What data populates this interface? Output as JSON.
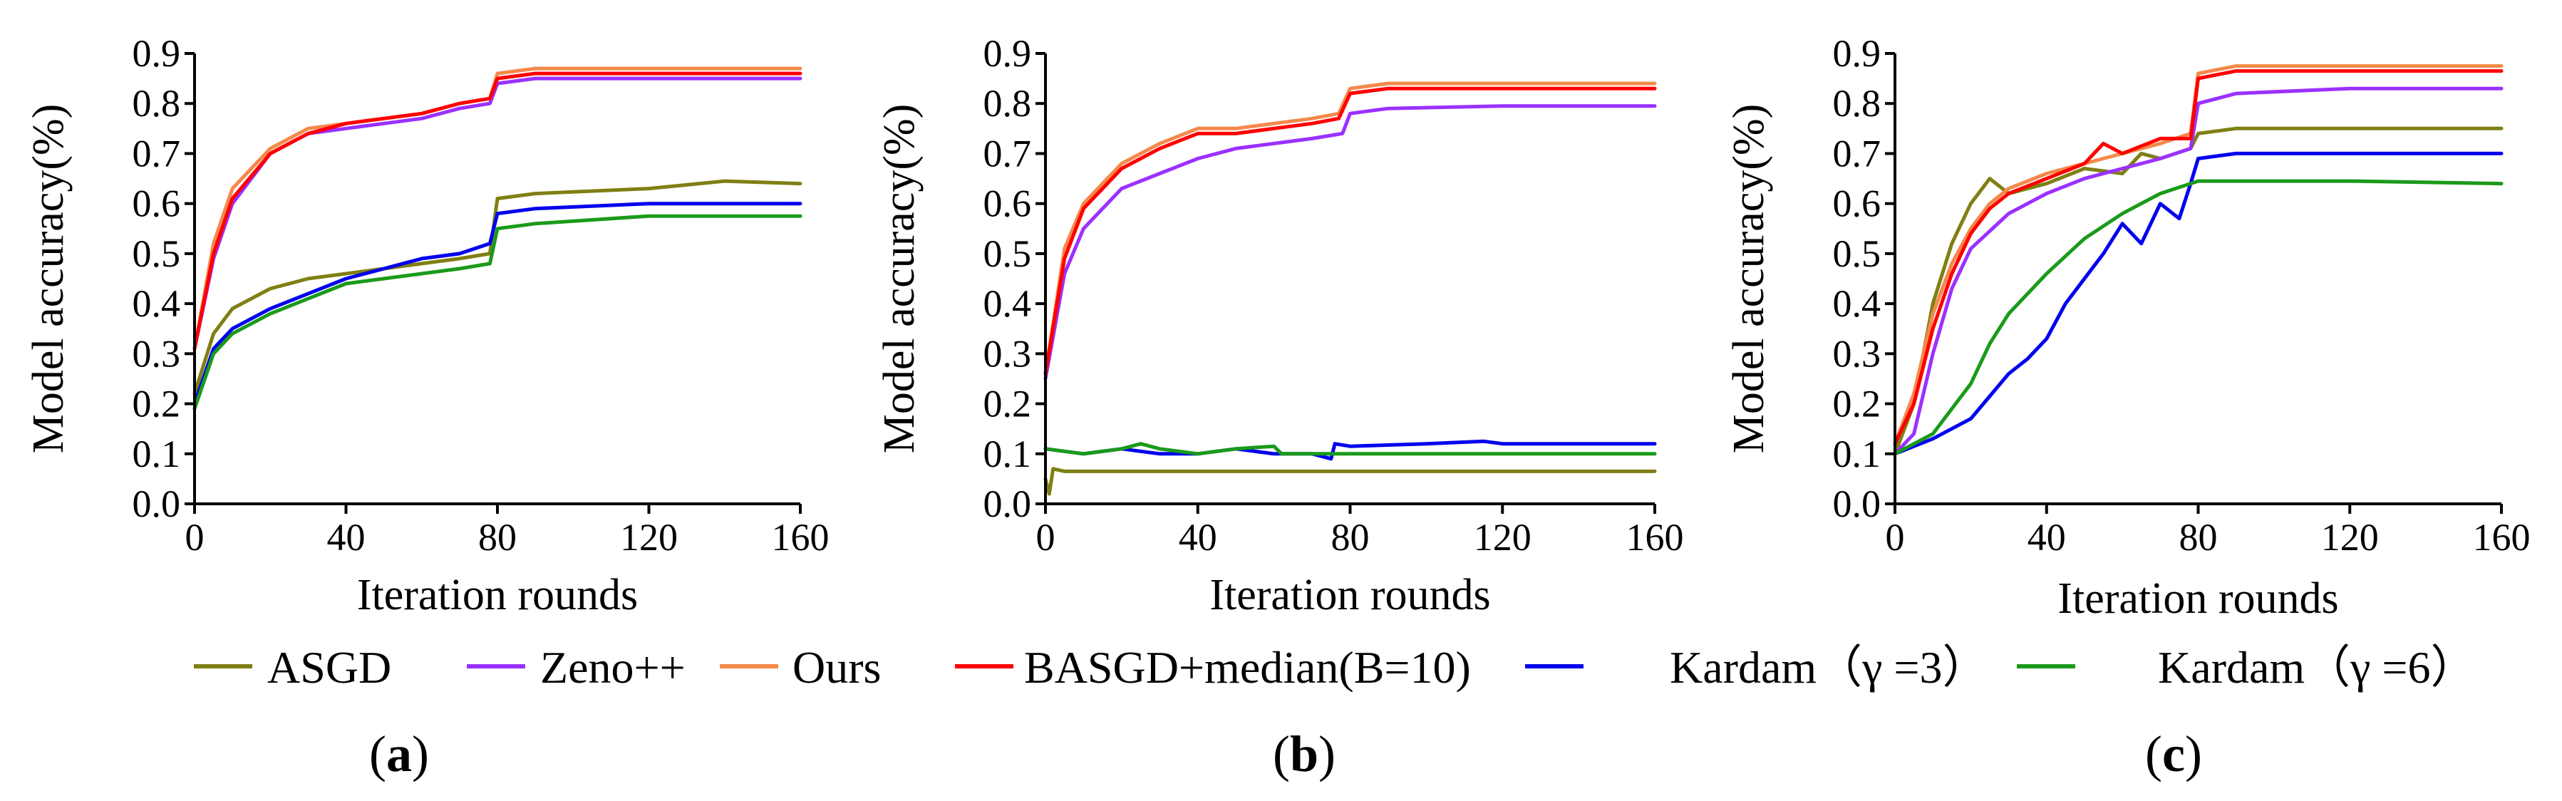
{
  "figure": {
    "legend": [
      {
        "name": "ASGD",
        "color": "#7f7f14"
      },
      {
        "name": "Zeno++",
        "color": "#9b30ff"
      },
      {
        "name": "Ours",
        "color": "#f5894a"
      },
      {
        "name": "BASGD+median(B=10)",
        "color": "#ff0000"
      },
      {
        "name": "Kardam（γ =3）",
        "color": "#0000ee"
      },
      {
        "name": "Kardam（γ =6）",
        "color": "#1a9a1a"
      }
    ]
  },
  "chart_data": [
    {
      "type": "line",
      "panel_label": "a",
      "title": "",
      "xlabel": "Iteration rounds",
      "ylabel": "Model accuracy(%)",
      "xlim": [
        0,
        160
      ],
      "ylim": [
        0.0,
        0.9
      ],
      "xticks": [
        "0",
        "40",
        "80",
        "120",
        "160"
      ],
      "yticks": [
        "0.0",
        "0.1",
        "0.2",
        "0.3",
        "0.4",
        "0.5",
        "0.6",
        "0.7",
        "0.8",
        "0.9"
      ],
      "series": [
        {
          "name": "ASGD",
          "x": [
            0,
            5,
            10,
            20,
            30,
            40,
            50,
            60,
            70,
            78,
            80,
            90,
            120,
            140,
            160
          ],
          "values": [
            0.22,
            0.34,
            0.39,
            0.43,
            0.45,
            0.46,
            0.47,
            0.48,
            0.49,
            0.5,
            0.61,
            0.62,
            0.63,
            0.645,
            0.64
          ]
        },
        {
          "name": "Zeno++",
          "x": [
            0,
            5,
            10,
            20,
            30,
            40,
            50,
            60,
            70,
            78,
            80,
            90,
            120,
            160
          ],
          "values": [
            0.31,
            0.49,
            0.6,
            0.7,
            0.74,
            0.75,
            0.76,
            0.77,
            0.79,
            0.8,
            0.84,
            0.85,
            0.85,
            0.85
          ]
        },
        {
          "name": "Ours",
          "x": [
            0,
            5,
            10,
            20,
            30,
            40,
            50,
            60,
            70,
            78,
            80,
            90,
            120,
            160
          ],
          "values": [
            0.31,
            0.52,
            0.63,
            0.71,
            0.75,
            0.76,
            0.77,
            0.78,
            0.8,
            0.81,
            0.86,
            0.87,
            0.87,
            0.87
          ]
        },
        {
          "name": "BASGD+median(B=10)",
          "x": [
            0,
            5,
            10,
            20,
            30,
            40,
            50,
            60,
            70,
            78,
            80,
            90,
            120,
            160
          ],
          "values": [
            0.31,
            0.5,
            0.61,
            0.7,
            0.74,
            0.76,
            0.77,
            0.78,
            0.8,
            0.81,
            0.85,
            0.86,
            0.86,
            0.86
          ]
        },
        {
          "name": "Kardam（γ =3）",
          "x": [
            0,
            5,
            10,
            20,
            30,
            40,
            50,
            60,
            70,
            78,
            80,
            90,
            120,
            160
          ],
          "values": [
            0.2,
            0.31,
            0.35,
            0.39,
            0.42,
            0.45,
            0.47,
            0.49,
            0.5,
            0.52,
            0.58,
            0.59,
            0.6,
            0.6
          ]
        },
        {
          "name": "Kardam（γ =6）",
          "x": [
            0,
            5,
            10,
            20,
            30,
            40,
            50,
            60,
            70,
            78,
            80,
            90,
            120,
            160
          ],
          "values": [
            0.19,
            0.3,
            0.34,
            0.38,
            0.41,
            0.44,
            0.45,
            0.46,
            0.47,
            0.48,
            0.55,
            0.56,
            0.575,
            0.575
          ]
        }
      ]
    },
    {
      "type": "line",
      "panel_label": "b",
      "title": "",
      "xlabel": "Iteration rounds",
      "ylabel": "Model accuracy(%)",
      "xlim": [
        0,
        160
      ],
      "ylim": [
        0.0,
        0.9
      ],
      "xticks": [
        "0",
        "40",
        "80",
        "120",
        "160"
      ],
      "yticks": [
        "0.0",
        "0.1",
        "0.2",
        "0.3",
        "0.4",
        "0.5",
        "0.6",
        "0.7",
        "0.8",
        "0.9"
      ],
      "series": [
        {
          "name": "ASGD",
          "x": [
            0,
            1,
            2,
            5,
            40,
            80,
            120,
            160
          ],
          "values": [
            0.05,
            0.02,
            0.07,
            0.065,
            0.065,
            0.065,
            0.065,
            0.065
          ]
        },
        {
          "name": "Zeno++",
          "x": [
            0,
            5,
            10,
            20,
            30,
            40,
            50,
            60,
            70,
            78,
            80,
            90,
            120,
            160
          ],
          "values": [
            0.25,
            0.46,
            0.55,
            0.63,
            0.66,
            0.69,
            0.71,
            0.72,
            0.73,
            0.74,
            0.78,
            0.79,
            0.795,
            0.795
          ]
        },
        {
          "name": "Ours",
          "x": [
            0,
            5,
            10,
            20,
            30,
            40,
            50,
            60,
            70,
            77,
            80,
            90,
            120,
            160
          ],
          "values": [
            0.26,
            0.51,
            0.6,
            0.68,
            0.72,
            0.75,
            0.75,
            0.76,
            0.77,
            0.78,
            0.83,
            0.84,
            0.84,
            0.84
          ]
        },
        {
          "name": "BASGD+median(B=10)",
          "x": [
            0,
            5,
            10,
            20,
            30,
            40,
            50,
            60,
            70,
            77,
            80,
            90,
            120,
            160
          ],
          "values": [
            0.26,
            0.49,
            0.59,
            0.67,
            0.71,
            0.74,
            0.74,
            0.75,
            0.76,
            0.77,
            0.82,
            0.83,
            0.83,
            0.83
          ]
        },
        {
          "name": "Kardam（γ =3）",
          "x": [
            0,
            10,
            20,
            30,
            40,
            50,
            60,
            70,
            75,
            76,
            80,
            100,
            115,
            120,
            140,
            160
          ],
          "values": [
            0.11,
            0.1,
            0.11,
            0.1,
            0.1,
            0.11,
            0.1,
            0.1,
            0.09,
            0.12,
            0.115,
            0.12,
            0.125,
            0.12,
            0.12,
            0.12
          ]
        },
        {
          "name": "Kardam（γ =6）",
          "x": [
            0,
            10,
            20,
            25,
            30,
            40,
            50,
            60,
            62,
            70,
            80,
            120,
            160
          ],
          "values": [
            0.11,
            0.1,
            0.11,
            0.12,
            0.11,
            0.1,
            0.11,
            0.115,
            0.1,
            0.1,
            0.1,
            0.1,
            0.1
          ]
        }
      ]
    },
    {
      "type": "line",
      "panel_label": "c",
      "title": "",
      "xlabel": "Iteration rounds",
      "ylabel": "Model accuracy(%)",
      "xlim": [
        0,
        160
      ],
      "ylim": [
        0.0,
        0.9
      ],
      "xticks": [
        "0",
        "40",
        "80",
        "120",
        "160"
      ],
      "yticks": [
        "0.0",
        "0.1",
        "0.2",
        "0.3",
        "0.4",
        "0.5",
        "0.6",
        "0.7",
        "0.8",
        "0.9"
      ],
      "series": [
        {
          "name": "ASGD",
          "x": [
            0,
            5,
            10,
            15,
            20,
            25,
            30,
            40,
            50,
            60,
            65,
            70,
            78,
            80,
            90,
            120,
            160
          ],
          "values": [
            0.1,
            0.2,
            0.4,
            0.52,
            0.6,
            0.65,
            0.62,
            0.64,
            0.67,
            0.66,
            0.7,
            0.69,
            0.71,
            0.74,
            0.75,
            0.75,
            0.75
          ]
        },
        {
          "name": "Zeno++",
          "x": [
            0,
            5,
            10,
            15,
            20,
            30,
            40,
            50,
            60,
            70,
            78,
            80,
            90,
            120,
            160
          ],
          "values": [
            0.1,
            0.14,
            0.3,
            0.43,
            0.51,
            0.58,
            0.62,
            0.65,
            0.67,
            0.69,
            0.71,
            0.8,
            0.82,
            0.83,
            0.83
          ]
        },
        {
          "name": "Ours",
          "x": [
            0,
            5,
            10,
            15,
            20,
            25,
            30,
            40,
            50,
            60,
            70,
            78,
            80,
            90,
            120,
            160
          ],
          "values": [
            0.12,
            0.22,
            0.38,
            0.48,
            0.55,
            0.6,
            0.63,
            0.66,
            0.68,
            0.7,
            0.72,
            0.74,
            0.86,
            0.875,
            0.875,
            0.875
          ]
        },
        {
          "name": "BASGD+median(B=10)",
          "x": [
            0,
            5,
            10,
            15,
            20,
            25,
            30,
            40,
            50,
            55,
            60,
            70,
            78,
            80,
            90,
            120,
            160
          ],
          "values": [
            0.12,
            0.2,
            0.35,
            0.46,
            0.54,
            0.59,
            0.62,
            0.65,
            0.68,
            0.72,
            0.7,
            0.73,
            0.73,
            0.85,
            0.865,
            0.865,
            0.865
          ]
        },
        {
          "name": "Kardam（γ =3）",
          "x": [
            0,
            10,
            20,
            30,
            35,
            40,
            45,
            50,
            55,
            60,
            65,
            70,
            75,
            78,
            80,
            90,
            120,
            160
          ],
          "values": [
            0.1,
            0.13,
            0.17,
            0.26,
            0.29,
            0.33,
            0.4,
            0.45,
            0.5,
            0.56,
            0.52,
            0.6,
            0.57,
            0.64,
            0.69,
            0.7,
            0.7,
            0.7
          ]
        },
        {
          "name": "Kardam（γ =6）",
          "x": [
            0,
            10,
            20,
            25,
            30,
            40,
            50,
            60,
            70,
            78,
            80,
            120,
            160
          ],
          "values": [
            0.1,
            0.14,
            0.24,
            0.32,
            0.38,
            0.46,
            0.53,
            0.58,
            0.62,
            0.64,
            0.645,
            0.645,
            0.64
          ]
        }
      ]
    }
  ]
}
